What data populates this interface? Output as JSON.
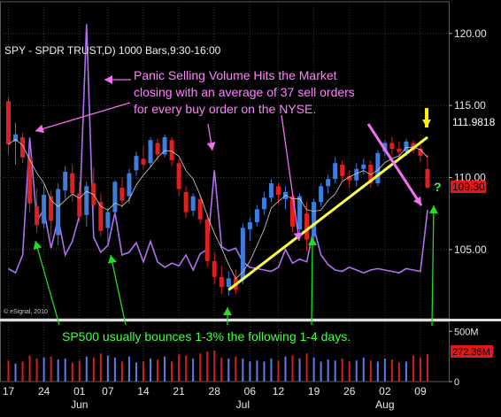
{
  "chart_data": {
    "type": "candlestick",
    "header": "SPY - SPDR TRUST,D) 1000 Bars,9:30-16:00",
    "watermark": "© eSignal, 2010",
    "annotations": {
      "panic": [
        "Panic Selling Volume Hits the Market",
        "closing with an average of 37 sell orders",
        "for every buy order on the NYSE."
      ],
      "bounce": "SP500 usually bounces 1-3% the following 1-4 days.",
      "question": "?"
    },
    "price_axis": {
      "ylim": [
        100.2,
        122.2
      ],
      "ticks": [
        {
          "v": 120,
          "label": "120.00"
        },
        {
          "v": 115,
          "label": "115.00"
        },
        {
          "v": 110,
          "label": "110.00"
        },
        {
          "v": 105,
          "label": "105.00"
        }
      ],
      "last_price_label": "111.9818",
      "last_close_label": "109.30"
    },
    "volume_axis": {
      "ylim": [
        0,
        600
      ],
      "ticks": [
        {
          "v": 500,
          "label": "500M"
        },
        {
          "v": 0,
          "label": "0"
        }
      ],
      "last_volume_label": "272.36M"
    },
    "x_axis": {
      "day_labels": [
        "17",
        "24",
        "01",
        "07",
        "14",
        "21",
        "28",
        "06",
        "12",
        "19",
        "26",
        "02",
        "09"
      ],
      "day_index": [
        0,
        5,
        10,
        14,
        19,
        24,
        29,
        34,
        38,
        43,
        48,
        53,
        58
      ],
      "month_labels": [
        "Jun",
        "Jul",
        "Aug"
      ],
      "month_index": [
        10,
        33,
        53
      ]
    },
    "candles": [
      {
        "o": 115.3,
        "h": 115.6,
        "l": 111.6,
        "c": 112.3
      },
      {
        "o": 112.5,
        "h": 113.8,
        "l": 110.9,
        "c": 113.0
      },
      {
        "o": 112.8,
        "h": 113.1,
        "l": 111.0,
        "c": 111.4
      },
      {
        "o": 111.4,
        "h": 111.8,
        "l": 107.6,
        "c": 108.2
      },
      {
        "o": 108.0,
        "h": 109.2,
        "l": 106.2,
        "c": 106.7
      },
      {
        "o": 106.8,
        "h": 109.5,
        "l": 106.5,
        "c": 108.8
      },
      {
        "o": 108.7,
        "h": 109.1,
        "l": 105.8,
        "c": 107.0
      },
      {
        "o": 106.0,
        "h": 109.6,
        "l": 105.3,
        "c": 109.2
      },
      {
        "o": 109.1,
        "h": 110.8,
        "l": 108.5,
        "c": 110.4
      },
      {
        "o": 110.3,
        "h": 110.9,
        "l": 108.3,
        "c": 108.9
      },
      {
        "o": 108.9,
        "h": 109.7,
        "l": 106.9,
        "c": 107.3
      },
      {
        "o": 107.4,
        "h": 109.7,
        "l": 106.6,
        "c": 109.4
      },
      {
        "o": 109.6,
        "h": 110.7,
        "l": 107.8,
        "c": 108.1
      },
      {
        "o": 108.3,
        "h": 108.9,
        "l": 105.9,
        "c": 106.3
      },
      {
        "o": 106.5,
        "h": 107.9,
        "l": 105.5,
        "c": 107.6
      },
      {
        "o": 107.6,
        "h": 109.8,
        "l": 107.4,
        "c": 109.7
      },
      {
        "o": 109.3,
        "h": 110.0,
        "l": 107.9,
        "c": 108.4
      },
      {
        "o": 108.7,
        "h": 110.6,
        "l": 108.2,
        "c": 110.3
      },
      {
        "o": 110.5,
        "h": 111.8,
        "l": 110.1,
        "c": 111.5
      },
      {
        "o": 111.3,
        "h": 112.2,
        "l": 110.6,
        "c": 110.9
      },
      {
        "o": 111.0,
        "h": 112.8,
        "l": 110.7,
        "c": 112.6
      },
      {
        "o": 112.4,
        "h": 112.7,
        "l": 111.1,
        "c": 111.6
      },
      {
        "o": 111.6,
        "h": 113.0,
        "l": 111.4,
        "c": 112.8
      },
      {
        "o": 112.6,
        "h": 112.8,
        "l": 110.8,
        "c": 111.2
      },
      {
        "o": 111.0,
        "h": 111.3,
        "l": 108.7,
        "c": 109.2
      },
      {
        "o": 109.0,
        "h": 109.4,
        "l": 107.2,
        "c": 107.6
      },
      {
        "o": 107.7,
        "h": 108.9,
        "l": 107.3,
        "c": 108.7
      },
      {
        "o": 108.5,
        "h": 108.8,
        "l": 106.8,
        "c": 107.1
      },
      {
        "o": 107.1,
        "h": 107.5,
        "l": 103.8,
        "c": 104.2
      },
      {
        "o": 104.2,
        "h": 104.8,
        "l": 102.6,
        "c": 103.1
      },
      {
        "o": 103.1,
        "h": 103.9,
        "l": 101.9,
        "c": 102.4
      },
      {
        "o": 102.4,
        "h": 103.5,
        "l": 101.8,
        "c": 103.0
      },
      {
        "o": 103.0,
        "h": 103.6,
        "l": 101.9,
        "c": 102.2
      },
      {
        "o": 102.9,
        "h": 106.8,
        "l": 102.6,
        "c": 106.5
      },
      {
        "o": 106.4,
        "h": 107.2,
        "l": 105.6,
        "c": 106.9
      },
      {
        "o": 106.9,
        "h": 108.1,
        "l": 106.6,
        "c": 107.8
      },
      {
        "o": 107.8,
        "h": 109.0,
        "l": 107.4,
        "c": 108.6
      },
      {
        "o": 108.6,
        "h": 109.9,
        "l": 108.3,
        "c": 109.6
      },
      {
        "o": 109.4,
        "h": 109.6,
        "l": 108.2,
        "c": 108.8
      },
      {
        "o": 108.5,
        "h": 109.4,
        "l": 107.8,
        "c": 109.0
      },
      {
        "o": 108.7,
        "h": 109.0,
        "l": 106.2,
        "c": 106.6
      },
      {
        "o": 106.4,
        "h": 108.9,
        "l": 106.2,
        "c": 108.7
      },
      {
        "o": 107.5,
        "h": 108.3,
        "l": 104.9,
        "c": 105.7
      },
      {
        "o": 105.9,
        "h": 108.5,
        "l": 105.7,
        "c": 108.3
      },
      {
        "o": 108.3,
        "h": 109.6,
        "l": 108.0,
        "c": 109.4
      },
      {
        "o": 109.4,
        "h": 110.2,
        "l": 108.9,
        "c": 109.9
      },
      {
        "o": 109.9,
        "h": 111.4,
        "l": 109.6,
        "c": 111.0
      },
      {
        "o": 110.9,
        "h": 111.2,
        "l": 109.8,
        "c": 110.1
      },
      {
        "o": 110.1,
        "h": 110.5,
        "l": 109.3,
        "c": 109.8
      },
      {
        "o": 109.8,
        "h": 111.0,
        "l": 109.4,
        "c": 110.6
      },
      {
        "o": 110.6,
        "h": 111.3,
        "l": 110.2,
        "c": 110.9
      },
      {
        "o": 110.9,
        "h": 111.2,
        "l": 109.3,
        "c": 109.6
      },
      {
        "o": 109.6,
        "h": 111.9,
        "l": 109.4,
        "c": 111.7
      },
      {
        "o": 111.8,
        "h": 112.6,
        "l": 111.5,
        "c": 112.4
      },
      {
        "o": 112.4,
        "h": 112.8,
        "l": 111.6,
        "c": 112.0
      },
      {
        "o": 112.0,
        "h": 112.5,
        "l": 111.4,
        "c": 111.8
      },
      {
        "o": 111.8,
        "h": 112.7,
        "l": 111.5,
        "c": 112.5
      },
      {
        "o": 112.4,
        "h": 112.6,
        "l": 111.7,
        "c": 111.9
      },
      {
        "o": 112.0,
        "h": 112.3,
        "l": 111.1,
        "c": 111.5
      },
      {
        "o": 110.6,
        "h": 111.6,
        "l": 109.2,
        "c": 109.3
      }
    ],
    "volume": [
      210,
      180,
      200,
      260,
      230,
      240,
      250,
      220,
      230,
      190,
      210,
      250,
      240,
      280,
      260,
      240,
      200,
      250,
      190,
      200,
      230,
      220,
      250,
      200,
      270,
      260,
      230,
      280,
      300,
      310,
      240,
      230,
      250,
      230,
      200,
      210,
      200,
      230,
      210,
      250,
      260,
      230,
      280,
      240,
      200,
      220,
      210,
      230,
      200,
      210,
      240,
      210,
      200,
      230,
      220,
      190,
      200,
      260,
      240,
      272
    ],
    "indicator": [
      2.5,
      2.2,
      3.5,
      12.1,
      6.0,
      6.8,
      4.0,
      6.2,
      3.5,
      4.5,
      6.4,
      20.4,
      4.8,
      3.7,
      4.2,
      6.6,
      3.5,
      3.7,
      4.4,
      3.0,
      4.5,
      3.0,
      2.6,
      2.9,
      2.7,
      3.5,
      2.4,
      3.6,
      3.9,
      9.7,
      4.1,
      3.8,
      4.0,
      3.0,
      2.6,
      2.5,
      2.4,
      2.3,
      2.6,
      3.9,
      2.9,
      3.2,
      3.0,
      5.5,
      3.5,
      2.8,
      2.4,
      2.3,
      2.6,
      2.4,
      2.2,
      2.4,
      2.5,
      2.4,
      2.3,
      2.2,
      2.5,
      2.4,
      2.3,
      6.8
    ],
    "moving_average_period": 5,
    "trendline": {
      "from_index": 31,
      "from_value": 102.2,
      "to_index": 59,
      "to_value": 112.8
    },
    "colors": {
      "up": "#3c7dde",
      "down": "#e02020",
      "indicator": "#b070f0",
      "ma": "#d0d0d0",
      "trendline": "#ffff44",
      "arrow": "#f070f0",
      "green_arrow": "#22dd22",
      "annotation": "#ff80ff"
    }
  }
}
